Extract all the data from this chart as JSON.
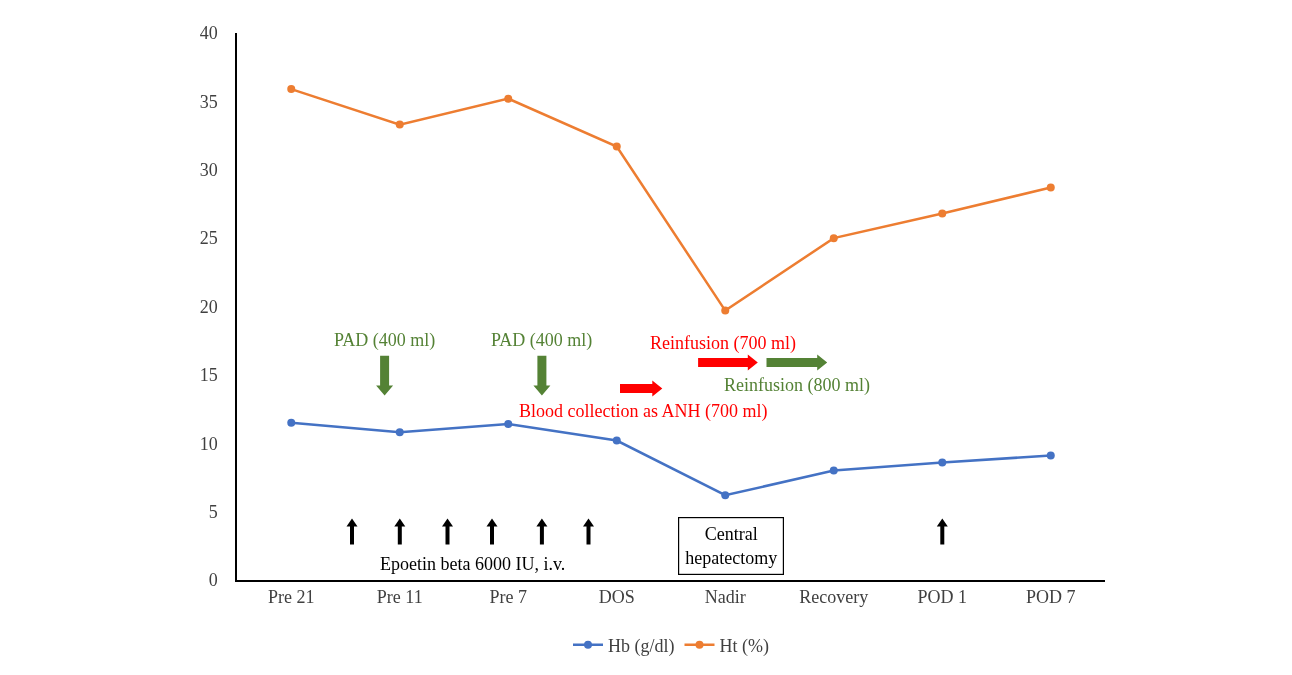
{
  "chart_data": {
    "type": "line",
    "categories": [
      "Pre 21",
      "Pre 11",
      "Pre 7",
      "DOS",
      "Nadir",
      "Recovery",
      "POD 1",
      "POD 7"
    ],
    "series": [
      {
        "name": "Hb (g/dl)",
        "color": "#4472c4",
        "values": [
          11.5,
          10.8,
          11.4,
          10.2,
          6.2,
          8.0,
          8.6,
          9.1
        ]
      },
      {
        "name": "Ht (%)",
        "color": "#ed7d31",
        "values": [
          35.9,
          33.3,
          35.2,
          31.7,
          19.7,
          25.0,
          26.8,
          28.7
        ]
      }
    ],
    "ylim": [
      0,
      40
    ],
    "yticks": [
      0,
      5,
      10,
      15,
      20,
      25,
      30,
      35,
      40
    ],
    "grid": false,
    "legend": "bottom",
    "marker": "circle",
    "line_style": "solid",
    "annotations": [
      "PAD (400 ml)",
      "PAD (400 ml)",
      "Reinfusion (700 ml)",
      "Reinfusion (800 ml)",
      "Blood collection as ANH (700 ml)",
      "Epoetin beta 6000 IU, i.v.",
      "Central\nhepatectomy"
    ]
  }
}
